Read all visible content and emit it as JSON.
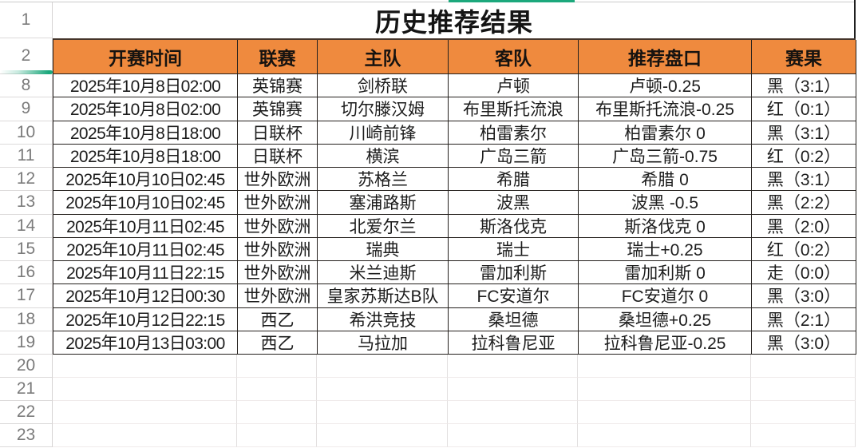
{
  "sheet": {
    "title": "历史推荐结果",
    "row_numbers": {
      "title": "1",
      "header": "2",
      "empty": [
        "20",
        "21",
        "22",
        "23"
      ]
    }
  },
  "table": {
    "columns": [
      "开赛时间",
      "联赛",
      "主队",
      "客队",
      "推荐盘口",
      "赛果"
    ],
    "rows": [
      {
        "num": "8",
        "time": "2025年10月8日02:00",
        "league": "英锦赛",
        "home": "剑桥联",
        "away": "卢顿",
        "handicap": "卢顿-0.25",
        "result": "黑（3:1）",
        "result_color": "black"
      },
      {
        "num": "9",
        "time": "2025年10月8日02:00",
        "league": "英锦赛",
        "home": "切尔滕汉姆",
        "away": "布里斯托流浪",
        "handicap": "布里斯托流浪-0.25",
        "result": "红（0:1）",
        "result_color": "red"
      },
      {
        "num": "10",
        "time": "2025年10月8日18:00",
        "league": "日联杯",
        "home": "川崎前锋",
        "away": "柏雷素尔",
        "handicap": "柏雷素尔 0",
        "result": "黑（3:1）",
        "result_color": "black"
      },
      {
        "num": "11",
        "time": "2025年10月8日18:00",
        "league": "日联杯",
        "home": "横滨",
        "away": "广岛三箭",
        "handicap": "广岛三箭-0.75",
        "result": "红（0:2）",
        "result_color": "red"
      },
      {
        "num": "12",
        "time": "2025年10月10日02:45",
        "league": "世外欧洲",
        "home": "苏格兰",
        "away": "希腊",
        "handicap": "希腊 0",
        "result": "黑（3:1）",
        "result_color": "black"
      },
      {
        "num": "13",
        "time": "2025年10月10日02:45",
        "league": "世外欧洲",
        "home": "塞浦路斯",
        "away": "波黑",
        "handicap": "波黑 -0.5",
        "result": "黑（2:2）",
        "result_color": "black"
      },
      {
        "num": "14",
        "time": "2025年10月11日02:45",
        "league": "世外欧洲",
        "home": "北爱尔兰",
        "away": "斯洛伐克",
        "handicap": "斯洛伐克 0",
        "result": "黑（2:0）",
        "result_color": "black"
      },
      {
        "num": "15",
        "time": "2025年10月11日02:45",
        "league": "世外欧洲",
        "home": "瑞典",
        "away": "瑞士",
        "handicap": "瑞士+0.25",
        "result": "红（0:2）",
        "result_color": "red"
      },
      {
        "num": "16",
        "time": "2025年10月11日22:15",
        "league": "世外欧洲",
        "home": "米兰迪斯",
        "away": "雷加利斯",
        "handicap": "雷加利斯 0",
        "result": "走（0:0）",
        "result_color": "orange"
      },
      {
        "num": "17",
        "time": "2025年10月12日00:30",
        "league": "世外欧洲",
        "home": "皇家苏斯达B队",
        "away": "FC安道尔",
        "handicap": "FC安道尔 0",
        "result": "黑（3:0）",
        "result_color": "black"
      },
      {
        "num": "18",
        "time": "2025年10月12日22:15",
        "league": "西乙",
        "home": "希洪竞技",
        "away": "桑坦德",
        "handicap": "桑坦德+0.25",
        "result": "黑（2:1）",
        "result_color": "black"
      },
      {
        "num": "19",
        "time": "2025年10月13日03:00",
        "league": "西乙",
        "home": "马拉加",
        "away": "拉科鲁尼亚",
        "handicap": "拉科鲁尼亚-0.25",
        "result": "黑（3:0）",
        "result_color": "black"
      }
    ]
  },
  "colors": {
    "header_bg": "#EF8A3E",
    "result_red": "#C00000",
    "result_push": "#E5762C",
    "accent_green": "#1CA87C"
  }
}
